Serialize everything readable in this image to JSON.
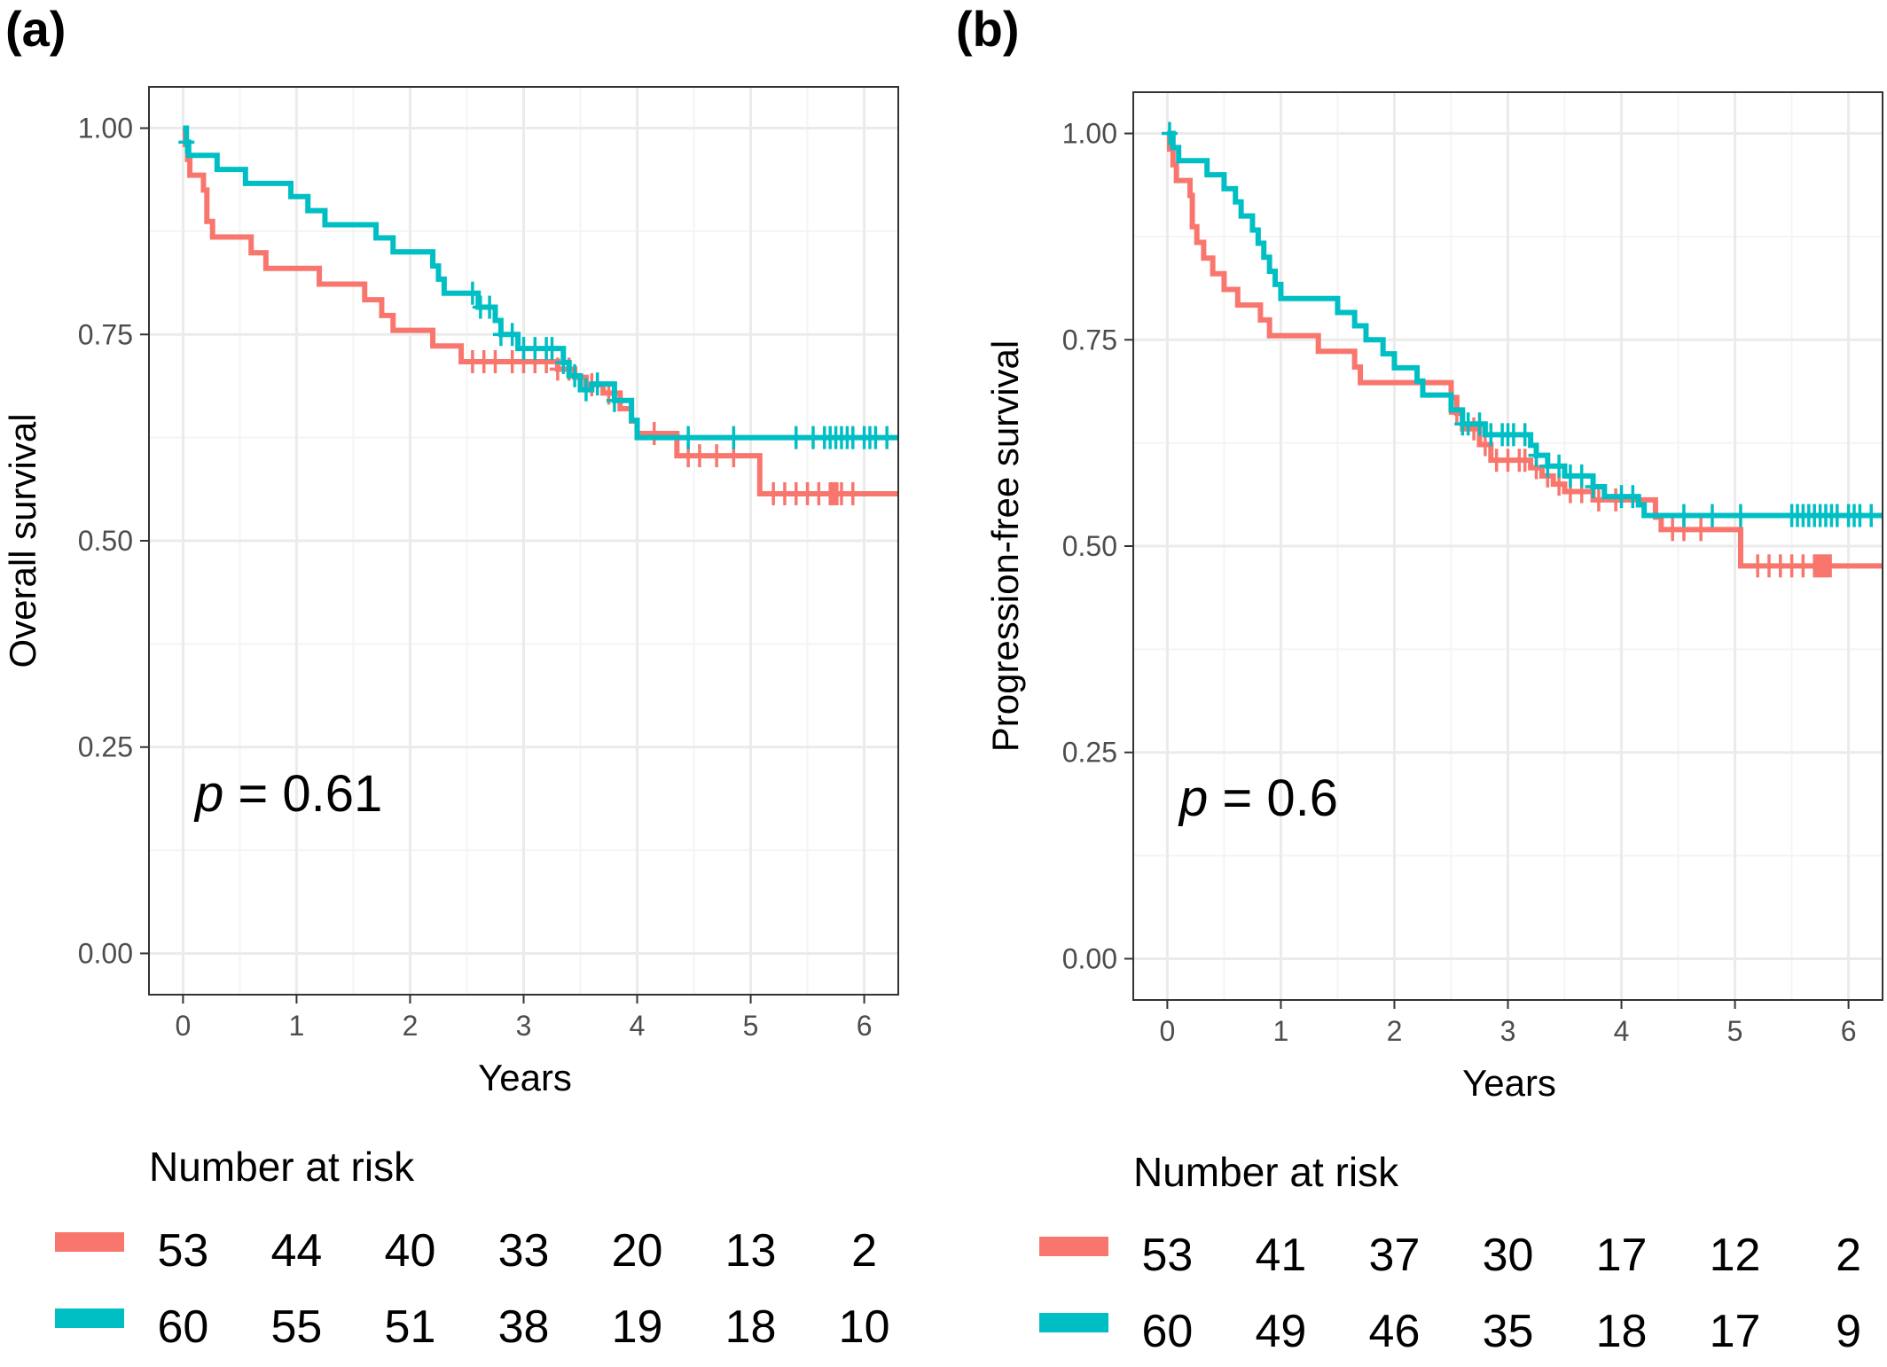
{
  "colors": {
    "group1": "#F8766D",
    "group2": "#00BFC4",
    "grid_major": "#EBEBEB",
    "grid_minor": "#F4F4F4",
    "panel_border": "#333333",
    "tick_text": "#4D4D4D"
  },
  "chart_data": [
    {
      "type": "line",
      "subtype": "kaplan-meier step",
      "panel_label": "(a)",
      "xlabel": "Years",
      "ylabel": "Overall survival",
      "xlim": [
        -0.3,
        6.3
      ],
      "ylim": [
        -0.05,
        1.05
      ],
      "x_ticks": [
        0,
        1,
        2,
        3,
        4,
        5,
        6
      ],
      "x_tick_labels": [
        "0",
        "1",
        "2",
        "3",
        "4",
        "5",
        "6"
      ],
      "y_ticks": [
        0,
        0.25,
        0.5,
        0.75,
        1
      ],
      "y_tick_labels": [
        "0.00",
        "0.25",
        "0.50",
        "0.75",
        "1.00"
      ],
      "grid": true,
      "annotation": {
        "p_symbol": "p",
        "p_text": " = 0.61"
      },
      "series": [
        {
          "color_key": "group1",
          "steps": [
            [
              0,
              1
            ],
            [
              0.02,
              0.98
            ],
            [
              0.04,
              0.962
            ],
            [
              0.06,
              0.943
            ],
            [
              0.18,
              0.925
            ],
            [
              0.21,
              0.887
            ],
            [
              0.26,
              0.868
            ],
            [
              0.6,
              0.849
            ],
            [
              0.73,
              0.83
            ],
            [
              1.2,
              0.811
            ],
            [
              1.6,
              0.792
            ],
            [
              1.75,
              0.773
            ],
            [
              1.85,
              0.755
            ],
            [
              2.2,
              0.736
            ],
            [
              2.45,
              0.717
            ],
            [
              3.3,
              0.708
            ],
            [
              3.45,
              0.698
            ],
            [
              3.55,
              0.689
            ],
            [
              3.7,
              0.679
            ],
            [
              3.85,
              0.66
            ],
            [
              3.95,
              0.645
            ],
            [
              4.0,
              0.63
            ],
            [
              4.35,
              0.603
            ],
            [
              5.08,
              0.557
            ],
            [
              6.3,
              0.557
            ]
          ],
          "censors": [
            2.55,
            2.65,
            2.75,
            2.9,
            3.0,
            3.1,
            3.2,
            3.3,
            3.4,
            3.6,
            3.75,
            4.15,
            4.45,
            4.55,
            4.7,
            4.85,
            5.2,
            5.3,
            5.4,
            5.5,
            5.6,
            5.7,
            5.72,
            5.74,
            5.76,
            5.8,
            5.9
          ]
        },
        {
          "color_key": "group2",
          "steps": [
            [
              0,
              1
            ],
            [
              0.03,
              0.983
            ],
            [
              0.05,
              0.967
            ],
            [
              0.3,
              0.95
            ],
            [
              0.55,
              0.933
            ],
            [
              0.95,
              0.917
            ],
            [
              1.1,
              0.9
            ],
            [
              1.25,
              0.883
            ],
            [
              1.7,
              0.867
            ],
            [
              1.85,
              0.85
            ],
            [
              2.2,
              0.833
            ],
            [
              2.25,
              0.817
            ],
            [
              2.3,
              0.8
            ],
            [
              2.6,
              0.783
            ],
            [
              2.75,
              0.767
            ],
            [
              2.8,
              0.75
            ],
            [
              2.95,
              0.733
            ],
            [
              3.35,
              0.716
            ],
            [
              3.4,
              0.7
            ],
            [
              3.5,
              0.683
            ],
            [
              3.6,
              0.69
            ],
            [
              3.8,
              0.67
            ],
            [
              3.95,
              0.646
            ],
            [
              4.0,
              0.625
            ],
            [
              6.3,
              0.625
            ]
          ],
          "censors": [
            0.03,
            2.55,
            2.62,
            2.7,
            2.8,
            2.9,
            3.0,
            3.1,
            3.2,
            3.25,
            3.35,
            3.45,
            3.55,
            3.65,
            3.8,
            4.45,
            4.85,
            5.4,
            5.55,
            5.65,
            5.7,
            5.75,
            5.8,
            5.85,
            5.9,
            6.0,
            6.05,
            6.1,
            6.2
          ]
        }
      ],
      "risk_table": {
        "title": "Number at risk",
        "rows": [
          {
            "color_key": "group1",
            "values": [
              "53",
              "44",
              "40",
              "33",
              "20",
              "13",
              "2"
            ]
          },
          {
            "color_key": "group2",
            "values": [
              "60",
              "55",
              "51",
              "38",
              "19",
              "18",
              "10"
            ]
          }
        ]
      }
    },
    {
      "type": "line",
      "subtype": "kaplan-meier step",
      "panel_label": "(b)",
      "xlabel": "Years",
      "ylabel": "Progression-free survival",
      "xlim": [
        -0.3,
        6.3
      ],
      "ylim": [
        -0.05,
        1.05
      ],
      "x_ticks": [
        0,
        1,
        2,
        3,
        4,
        5,
        6
      ],
      "x_tick_labels": [
        "0",
        "1",
        "2",
        "3",
        "4",
        "5",
        "6"
      ],
      "y_ticks": [
        0,
        0.25,
        0.5,
        0.75,
        1
      ],
      "y_tick_labels": [
        "0.00",
        "0.25",
        "0.50",
        "0.75",
        "1.00"
      ],
      "grid": true,
      "annotation": {
        "p_symbol": "p",
        "p_text": " = 0.6"
      },
      "series": [
        {
          "color_key": "group1",
          "steps": [
            [
              0,
              1
            ],
            [
              0.02,
              0.981
            ],
            [
              0.05,
              0.962
            ],
            [
              0.08,
              0.943
            ],
            [
              0.2,
              0.925
            ],
            [
              0.22,
              0.887
            ],
            [
              0.26,
              0.868
            ],
            [
              0.32,
              0.849
            ],
            [
              0.4,
              0.83
            ],
            [
              0.5,
              0.811
            ],
            [
              0.62,
              0.792
            ],
            [
              0.82,
              0.774
            ],
            [
              0.9,
              0.755
            ],
            [
              1.3,
              0.755
            ],
            [
              1.33,
              0.736
            ],
            [
              1.65,
              0.717
            ],
            [
              1.7,
              0.698
            ],
            [
              2.5,
              0.68
            ],
            [
              2.55,
              0.661
            ],
            [
              2.6,
              0.642
            ],
            [
              2.75,
              0.623
            ],
            [
              2.85,
              0.604
            ],
            [
              3.2,
              0.595
            ],
            [
              3.3,
              0.585
            ],
            [
              3.4,
              0.575
            ],
            [
              3.5,
              0.566
            ],
            [
              3.75,
              0.556
            ],
            [
              4.3,
              0.535
            ],
            [
              4.35,
              0.52
            ],
            [
              5.05,
              0.476
            ],
            [
              6.3,
              0.476
            ]
          ],
          "censors": [
            2.55,
            2.7,
            2.8,
            2.9,
            3.0,
            3.1,
            3.15,
            3.25,
            3.35,
            3.45,
            3.55,
            3.65,
            3.8,
            3.95,
            4.45,
            4.55,
            4.7,
            5.2,
            5.3,
            5.4,
            5.5,
            5.6,
            5.7,
            5.72,
            5.74,
            5.76,
            5.78,
            5.8,
            5.82,
            5.84
          ]
        },
        {
          "color_key": "group2",
          "steps": [
            [
              0,
              1
            ],
            [
              0.05,
              0.983
            ],
            [
              0.1,
              0.967
            ],
            [
              0.35,
              0.95
            ],
            [
              0.5,
              0.933
            ],
            [
              0.6,
              0.917
            ],
            [
              0.65,
              0.9
            ],
            [
              0.75,
              0.883
            ],
            [
              0.8,
              0.867
            ],
            [
              0.85,
              0.85
            ],
            [
              0.9,
              0.833
            ],
            [
              0.95,
              0.817
            ],
            [
              1.0,
              0.8
            ],
            [
              1.5,
              0.783
            ],
            [
              1.65,
              0.767
            ],
            [
              1.75,
              0.75
            ],
            [
              1.9,
              0.733
            ],
            [
              2.0,
              0.716
            ],
            [
              2.2,
              0.7
            ],
            [
              2.25,
              0.683
            ],
            [
              2.5,
              0.665
            ],
            [
              2.6,
              0.648
            ],
            [
              2.8,
              0.635
            ],
            [
              3.2,
              0.622
            ],
            [
              3.25,
              0.61
            ],
            [
              3.35,
              0.597
            ],
            [
              3.5,
              0.585
            ],
            [
              3.75,
              0.572
            ],
            [
              3.85,
              0.56
            ],
            [
              4.15,
              0.55
            ],
            [
              4.2,
              0.537
            ],
            [
              6.3,
              0.537
            ]
          ],
          "censors": [
            0.02,
            2.6,
            2.65,
            2.75,
            2.85,
            2.95,
            3.0,
            3.05,
            3.15,
            3.25,
            3.35,
            3.45,
            3.55,
            3.65,
            3.75,
            4.0,
            4.1,
            4.55,
            4.8,
            5.05,
            5.5,
            5.55,
            5.6,
            5.65,
            5.7,
            5.75,
            5.8,
            5.85,
            5.9,
            6.0,
            6.05,
            6.1,
            6.2
          ]
        }
      ],
      "risk_table": {
        "title": "Number at risk",
        "rows": [
          {
            "color_key": "group1",
            "values": [
              "53",
              "41",
              "37",
              "30",
              "17",
              "12",
              "2"
            ]
          },
          {
            "color_key": "group2",
            "values": [
              "60",
              "49",
              "46",
              "35",
              "18",
              "17",
              "9"
            ]
          }
        ]
      }
    }
  ]
}
